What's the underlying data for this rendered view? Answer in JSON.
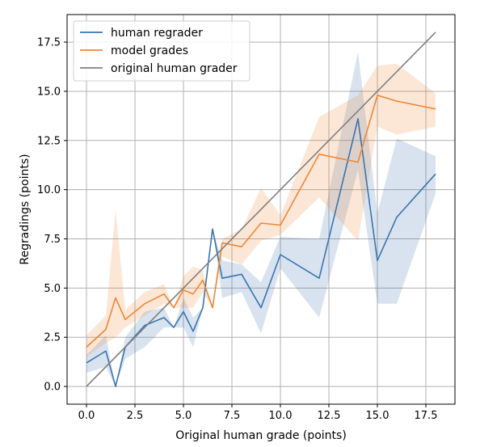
{
  "chart_data": {
    "type": "line",
    "title": "",
    "xlabel": "Original human grade (points)",
    "ylabel": "Regradings (points)",
    "xlim": [
      -1,
      19
    ],
    "ylim": [
      -0.9,
      18.9
    ],
    "grid": true,
    "legend_position": "top-left",
    "xticks": [
      0,
      2.5,
      5,
      7.5,
      10,
      12.5,
      15,
      17.5
    ],
    "xtick_labels": [
      "0.0",
      "2.5",
      "5.0",
      "7.5",
      "10.0",
      "12.5",
      "15.0",
      "17.5"
    ],
    "yticks": [
      0,
      2.5,
      5,
      7.5,
      10,
      12.5,
      15,
      17.5
    ],
    "ytick_labels": [
      "0.0",
      "2.5",
      "5.0",
      "7.5",
      "10.0",
      "12.5",
      "15.0",
      "17.5"
    ],
    "series": [
      {
        "name": "human regrader",
        "color": "#3a75af",
        "x": [
          0,
          1,
          1.5,
          2,
          3,
          4,
          4.5,
          5,
          5.5,
          6,
          6.5,
          7,
          8,
          9,
          10,
          12,
          14,
          15,
          16,
          18
        ],
        "y": [
          1.2,
          1.8,
          0.0,
          2.0,
          3.1,
          3.5,
          3.0,
          3.8,
          2.8,
          4.0,
          8.0,
          5.5,
          5.7,
          4.0,
          6.7,
          5.5,
          13.6,
          6.4,
          8.6,
          10.8
        ],
        "band_lower": [
          0.7,
          1.0,
          0.0,
          1.4,
          2.0,
          3.0,
          3.0,
          3.0,
          2.0,
          4.0,
          8.0,
          4.5,
          4.8,
          2.7,
          6.0,
          3.5,
          11.0,
          4.2,
          4.2,
          9.8
        ],
        "band_upper": [
          1.6,
          2.6,
          0.0,
          2.5,
          3.8,
          4.0,
          3.0,
          4.5,
          3.5,
          4.0,
          8.0,
          6.4,
          6.2,
          5.3,
          7.6,
          7.5,
          17.0,
          8.8,
          12.6,
          11.7
        ]
      },
      {
        "name": "model grades",
        "color": "#ef8636",
        "x": [
          0,
          1,
          1.5,
          2,
          3,
          4,
          4.5,
          5,
          5.5,
          6,
          6.5,
          7,
          8,
          9,
          10,
          12,
          14,
          15,
          16,
          18
        ],
        "y": [
          2.0,
          2.9,
          4.5,
          3.4,
          4.2,
          4.7,
          4.0,
          4.9,
          4.7,
          5.4,
          4.0,
          7.3,
          7.1,
          8.3,
          8.2,
          11.8,
          11.4,
          14.8,
          14.5,
          14.1
        ],
        "band_lower": [
          1.5,
          2.2,
          2.5,
          3.0,
          3.6,
          4.2,
          4.0,
          4.0,
          4.0,
          4.8,
          4.0,
          6.6,
          6.2,
          7.4,
          7.7,
          9.6,
          7.4,
          13.2,
          12.8,
          13.2
        ],
        "band_upper": [
          2.6,
          3.6,
          9.0,
          3.9,
          4.8,
          5.2,
          4.0,
          5.6,
          6.1,
          5.9,
          4.0,
          7.5,
          8.0,
          10.1,
          8.7,
          13.7,
          14.8,
          16.3,
          16.4,
          14.9
        ]
      },
      {
        "name": "original human grader",
        "color": "#7f7f7f",
        "x": [
          0,
          18
        ],
        "y": [
          0,
          18
        ]
      }
    ]
  }
}
